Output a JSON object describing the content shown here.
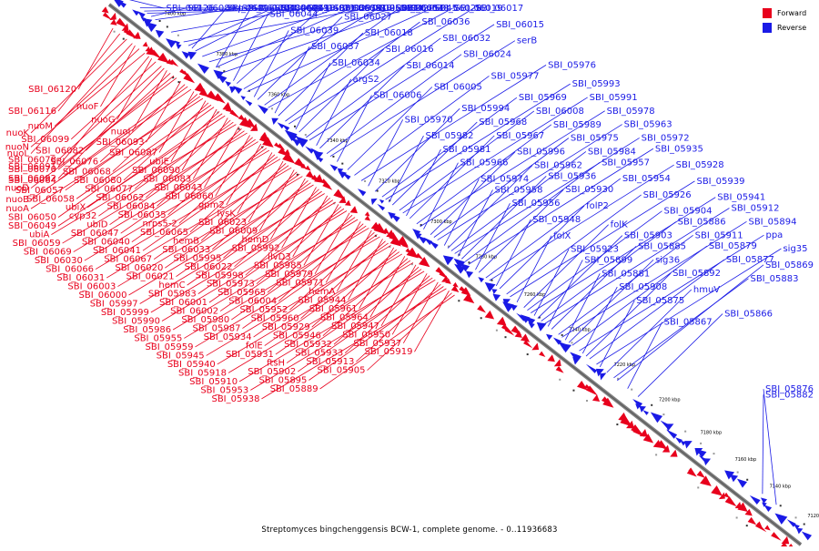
{
  "caption": "Streptomyces bingchenggensis BCW-1, complete genome. - 0..11936683",
  "colors": {
    "forward": "#e8001c",
    "reverse": "#1a1ae6",
    "axis": "#808080"
  },
  "legend": [
    {
      "label": "Forward",
      "strand": "forward"
    },
    {
      "label": "Reverse",
      "strand": "reverse"
    }
  ],
  "ticks": [
    {
      "label": "7400 kbp",
      "t": 0.055
    },
    {
      "label": "7380 kbp",
      "t": 0.13
    },
    {
      "label": "7360 kbp",
      "t": 0.205
    },
    {
      "label": "7340 kbp",
      "t": 0.29
    },
    {
      "label": "7320 kbp",
      "t": 0.365
    },
    {
      "label": "7300 kbp",
      "t": 0.44
    },
    {
      "label": "7280 kbp",
      "t": 0.505
    },
    {
      "label": "7260 kbp",
      "t": 0.575
    },
    {
      "label": "7240 kbp",
      "t": 0.64
    },
    {
      "label": "7220 kbp",
      "t": 0.705
    },
    {
      "label": "7200 kbp",
      "t": 0.77
    },
    {
      "label": "7180 kbp",
      "t": 0.83
    },
    {
      "label": "7160 kbp",
      "t": 0.88
    },
    {
      "label": "7140 kbp",
      "t": 0.93
    },
    {
      "label": "7120 kbp",
      "t": 0.985
    }
  ],
  "reverse_labels": [
    {
      "text": "SBI_06126",
      "t": 0.015
    },
    {
      "text": "SBI_06096",
      "t": 0.03
    },
    {
      "text": "SBI_06081",
      "t": 0.036
    },
    {
      "text": "SBI_06079",
      "t": 0.04
    },
    {
      "text": "SBI_06089",
      "t": 0.046
    },
    {
      "text": "SBI_06115",
      "t": 0.052
    },
    {
      "text": "SBI_06071",
      "t": 0.075
    },
    {
      "text": "SBI_06053",
      "t": 0.093
    },
    {
      "text": "nrps5-1",
      "t": 0.105
    },
    {
      "text": "SBI_06061",
      "t": 0.11
    },
    {
      "text": "SBI_06051",
      "t": 0.12
    },
    {
      "text": "SBI_06054",
      "t": 0.13
    },
    {
      "text": "SBI_06048",
      "t": 0.14
    },
    {
      "text": "SBI_06098",
      "t": 0.1
    },
    {
      "text": "SBI_06085",
      "t": 0.14
    },
    {
      "text": "SBI_06045",
      "t": 0.15
    },
    {
      "text": "SBI_06044",
      "t": 0.165
    },
    {
      "text": "SBI_06029",
      "t": 0.17
    },
    {
      "text": "SBI_06042",
      "t": 0.18
    },
    {
      "text": "SBI_06028",
      "t": 0.185
    },
    {
      "text": "SBI_06039",
      "t": 0.195
    },
    {
      "text": "SBI_06027",
      "t": 0.2
    },
    {
      "text": "SBI_06038",
      "t": 0.21
    },
    {
      "text": "SBI_06019",
      "t": 0.215
    },
    {
      "text": "SBI_06037",
      "t": 0.225
    },
    {
      "text": "SBI_06018",
      "t": 0.23
    },
    {
      "text": "SBI_06036",
      "t": 0.24
    },
    {
      "text": "SBI_06017",
      "t": 0.245
    },
    {
      "text": "SBI_06034",
      "t": 0.255
    },
    {
      "text": "SBI_06016",
      "t": 0.26
    },
    {
      "text": "SBI_06032",
      "t": 0.27
    },
    {
      "text": "SBI_06015",
      "t": 0.275
    },
    {
      "text": "argS2",
      "t": 0.285
    },
    {
      "text": "SBI_06014",
      "t": 0.29
    },
    {
      "text": "SBI_06024",
      "t": 0.3
    },
    {
      "text": "serB",
      "t": 0.305
    },
    {
      "text": "SBI_06006",
      "t": 0.315
    },
    {
      "text": "SBI_06005",
      "t": 0.33
    },
    {
      "text": "SBI_05977",
      "t": 0.34
    },
    {
      "text": "SBI_05976",
      "t": 0.35
    },
    {
      "text": "SBI_05970",
      "t": 0.36
    },
    {
      "text": "SBI_05994",
      "t": 0.37
    },
    {
      "text": "SBI_05969",
      "t": 0.38
    },
    {
      "text": "SBI_05993",
      "t": 0.385
    },
    {
      "text": "SBI_05982",
      "t": 0.39
    },
    {
      "text": "SBI_05968",
      "t": 0.395
    },
    {
      "text": "SBI_06008",
      "t": 0.405
    },
    {
      "text": "SBI_05991",
      "t": 0.41
    },
    {
      "text": "SBI_05981",
      "t": 0.415
    },
    {
      "text": "SBI_05967",
      "t": 0.42
    },
    {
      "text": "SBI_05989",
      "t": 0.43
    },
    {
      "text": "SBI_05978",
      "t": 0.435
    },
    {
      "text": "SBI_05966",
      "t": 0.44
    },
    {
      "text": "SBI_05996",
      "t": 0.45
    },
    {
      "text": "SBI_05975",
      "t": 0.455
    },
    {
      "text": "SBI_05963",
      "t": 0.46
    },
    {
      "text": "SBI_05974",
      "t": 0.47
    },
    {
      "text": "SBI_05962",
      "t": 0.475
    },
    {
      "text": "SBI_05984",
      "t": 0.48
    },
    {
      "text": "SBI_05972",
      "t": 0.485
    },
    {
      "text": "SBI_05958",
      "t": 0.49
    },
    {
      "text": "SBI_05936",
      "t": 0.495
    },
    {
      "text": "SBI_05957",
      "t": 0.5
    },
    {
      "text": "SBI_05935",
      "t": 0.505
    },
    {
      "text": "SBI_05956",
      "t": 0.515
    },
    {
      "text": "SBI_05930",
      "t": 0.52
    },
    {
      "text": "SBI_05954",
      "t": 0.53
    },
    {
      "text": "SBI_05928",
      "t": 0.535
    },
    {
      "text": "SBI_05948",
      "t": 0.545
    },
    {
      "text": "folP2",
      "t": 0.55
    },
    {
      "text": "SBI_05926",
      "t": 0.56
    },
    {
      "text": "SBI_05939",
      "t": 0.565
    },
    {
      "text": "folX",
      "t": 0.575
    },
    {
      "text": "folK",
      "t": 0.585
    },
    {
      "text": "SBI_05904",
      "t": 0.59
    },
    {
      "text": "SBI_05941",
      "t": 0.595
    },
    {
      "text": "SBI_05923",
      "t": 0.6
    },
    {
      "text": "SBI_05903",
      "t": 0.605
    },
    {
      "text": "SBI_05886",
      "t": 0.61
    },
    {
      "text": "SBI_05912",
      "t": 0.615
    },
    {
      "text": "SBI_05899",
      "t": 0.62
    },
    {
      "text": "SBI_05885",
      "t": 0.625
    },
    {
      "text": "SBI_05911",
      "t": 0.635
    },
    {
      "text": "SBI_05894",
      "t": 0.64
    },
    {
      "text": "SBI_05881",
      "t": 0.645
    },
    {
      "text": "sig36",
      "t": 0.65
    },
    {
      "text": "SBI_05879",
      "t": 0.655
    },
    {
      "text": "ppa",
      "t": 0.665
    },
    {
      "text": "SBI_05908",
      "t": 0.67
    },
    {
      "text": "SBI_05892",
      "t": 0.675
    },
    {
      "text": "SBI_05877",
      "t": 0.68
    },
    {
      "text": "sig35",
      "t": 0.69
    },
    {
      "text": "SBI_05875",
      "t": 0.695
    },
    {
      "text": "hmuV",
      "t": 0.705
    },
    {
      "text": "SBI_05883",
      "t": 0.715
    },
    {
      "text": "SBI_05869",
      "t": 0.72
    },
    {
      "text": "SBI_05867",
      "t": 0.735
    },
    {
      "text": "SBI_05866",
      "t": 0.75
    },
    {
      "text": "SBI_05882",
      "t": 0.93
    },
    {
      "text": "SBI_05876",
      "t": 0.95
    }
  ],
  "forward_labels": [
    {
      "text": "SBI_06120",
      "t": 0.02
    },
    {
      "text": "SBI_06116",
      "t": 0.03
    },
    {
      "text": "nuoK",
      "t": 0.04
    },
    {
      "text": "nuoL",
      "t": 0.048
    },
    {
      "text": "nuoF",
      "t": 0.052
    },
    {
      "text": "nuoM",
      "t": 0.058
    },
    {
      "text": "nuoN",
      "t": 0.066
    },
    {
      "text": "SBI_06091",
      "t": 0.072
    },
    {
      "text": "nuoG",
      "t": 0.076
    },
    {
      "text": "SBI_06099",
      "t": 0.082
    },
    {
      "text": "SBI_06078",
      "t": 0.09
    },
    {
      "text": "SBI_06092",
      "t": 0.094
    },
    {
      "text": "nuoI",
      "t": 0.098
    },
    {
      "text": "SBI_06082",
      "t": 0.103
    },
    {
      "text": "SBI_06070",
      "t": 0.108
    },
    {
      "text": "nuoD",
      "t": 0.112
    },
    {
      "text": "SBI_06093",
      "t": 0.118
    },
    {
      "text": "SBI_06076",
      "t": 0.124
    },
    {
      "text": "SBI_06064",
      "t": 0.128
    },
    {
      "text": "nuoB",
      "t": 0.133
    },
    {
      "text": "SBI_06087",
      "t": 0.137
    },
    {
      "text": "SBI_06068",
      "t": 0.142
    },
    {
      "text": "SBI_06057",
      "t": 0.146
    },
    {
      "text": "nuoA",
      "t": 0.15
    },
    {
      "text": "ubiE",
      "t": 0.154
    },
    {
      "text": "SBI_06080",
      "t": 0.158
    },
    {
      "text": "SBI_06058",
      "t": 0.162
    },
    {
      "text": "SBI_06050",
      "t": 0.166
    },
    {
      "text": "SBI_06090",
      "t": 0.17
    },
    {
      "text": "SBI_06077",
      "t": 0.174
    },
    {
      "text": "ubiX",
      "t": 0.178
    },
    {
      "text": "SBI_06049",
      "t": 0.182
    },
    {
      "text": "SBI_06083",
      "t": 0.186
    },
    {
      "text": "SBI_06062",
      "t": 0.19
    },
    {
      "text": "cyp32",
      "t": 0.194
    },
    {
      "text": "ubiA",
      "t": 0.198
    },
    {
      "text": "SBI_06043",
      "t": 0.202
    },
    {
      "text": "SBI_06084",
      "t": 0.206
    },
    {
      "text": "ubiD",
      "t": 0.21
    },
    {
      "text": "SBI_06059",
      "t": 0.214
    },
    {
      "text": "SBI_06060",
      "t": 0.218
    },
    {
      "text": "SBI_06035",
      "t": 0.222
    },
    {
      "text": "SBI_06047",
      "t": 0.226
    },
    {
      "text": "SBI_06069",
      "t": 0.23
    },
    {
      "text": "gpm2",
      "t": 0.234
    },
    {
      "text": "nrps5-2",
      "t": 0.238
    },
    {
      "text": "SBI_06040",
      "t": 0.242
    },
    {
      "text": "SBI_06030",
      "t": 0.246
    },
    {
      "text": "lysK",
      "t": 0.25
    },
    {
      "text": "SBI_06065",
      "t": 0.254
    },
    {
      "text": "SBI_06041",
      "t": 0.258
    },
    {
      "text": "SBI_06066",
      "t": 0.262
    },
    {
      "text": "SBI_06023",
      "t": 0.266
    },
    {
      "text": "hemB",
      "t": 0.27
    },
    {
      "text": "SBI_06067",
      "t": 0.274
    },
    {
      "text": "SBI_06031",
      "t": 0.278
    },
    {
      "text": "SBI_06009",
      "t": 0.282
    },
    {
      "text": "SBI_06033",
      "t": 0.286
    },
    {
      "text": "SBI_06020",
      "t": 0.29
    },
    {
      "text": "SBI_06003",
      "t": 0.294
    },
    {
      "text": "hemD",
      "t": 0.298
    },
    {
      "text": "SBI_05995",
      "t": 0.302
    },
    {
      "text": "SBI_06021",
      "t": 0.306
    },
    {
      "text": "SBI_06000",
      "t": 0.31
    },
    {
      "text": "SBI_05992",
      "t": 0.314
    },
    {
      "text": "SBI_06022",
      "t": 0.318
    },
    {
      "text": "hemC",
      "t": 0.322
    },
    {
      "text": "SBI_05997",
      "t": 0.326
    },
    {
      "text": "ilvD3",
      "t": 0.33
    },
    {
      "text": "SBI_05998",
      "t": 0.334
    },
    {
      "text": "SBI_05983",
      "t": 0.338
    },
    {
      "text": "SBI_05999",
      "t": 0.342
    },
    {
      "text": "SBI_05985",
      "t": 0.346
    },
    {
      "text": "SBI_05973",
      "t": 0.35
    },
    {
      "text": "SBI_06001",
      "t": 0.354
    },
    {
      "text": "SBI_05990",
      "t": 0.358
    },
    {
      "text": "SBI_05979",
      "t": 0.362
    },
    {
      "text": "SBI_05965",
      "t": 0.366
    },
    {
      "text": "SBI_06002",
      "t": 0.37
    },
    {
      "text": "SBI_05986",
      "t": 0.374
    },
    {
      "text": "SBI_05971",
      "t": 0.378
    },
    {
      "text": "SBI_06004",
      "t": 0.382
    },
    {
      "text": "SBI_05980",
      "t": 0.386
    },
    {
      "text": "SBI_05955",
      "t": 0.39
    },
    {
      "text": "hemA",
      "t": 0.394
    },
    {
      "text": "SBI_05952",
      "t": 0.398
    },
    {
      "text": "SBI_05987",
      "t": 0.402
    },
    {
      "text": "SBI_05959",
      "t": 0.406
    },
    {
      "text": "SBI_05944",
      "t": 0.41
    },
    {
      "text": "SBI_05960",
      "t": 0.414
    },
    {
      "text": "SBI_05934",
      "t": 0.418
    },
    {
      "text": "SBI_05945",
      "t": 0.422
    },
    {
      "text": "SBI_05961",
      "t": 0.426
    },
    {
      "text": "SBI_05929",
      "t": 0.43
    },
    {
      "text": "folE",
      "t": 0.434
    },
    {
      "text": "SBI_05940",
      "t": 0.438
    },
    {
      "text": "SBI_05964",
      "t": 0.442
    },
    {
      "text": "SBI_05946",
      "t": 0.446
    },
    {
      "text": "SBI_05931",
      "t": 0.45
    },
    {
      "text": "SBI_05918",
      "t": 0.454
    },
    {
      "text": "SBI_05947",
      "t": 0.458
    },
    {
      "text": "SBI_05932",
      "t": 0.462
    },
    {
      "text": "ftsH",
      "t": 0.466
    },
    {
      "text": "SBI_05910",
      "t": 0.47
    },
    {
      "text": "SBI_05950",
      "t": 0.474
    },
    {
      "text": "SBI_05933",
      "t": 0.478
    },
    {
      "text": "SBI_05902",
      "t": 0.482
    },
    {
      "text": "SBI_05953",
      "t": 0.486
    },
    {
      "text": "SBI_05937",
      "t": 0.49
    },
    {
      "text": "SBI_05913",
      "t": 0.494
    },
    {
      "text": "SBI_05895",
      "t": 0.498
    },
    {
      "text": "SBI_05938",
      "t": 0.502
    },
    {
      "text": "SBI_05919",
      "t": 0.506
    },
    {
      "text": "SBI_05905",
      "t": 0.51
    },
    {
      "text": "SBI_05889",
      "t": 0.514
    }
  ]
}
